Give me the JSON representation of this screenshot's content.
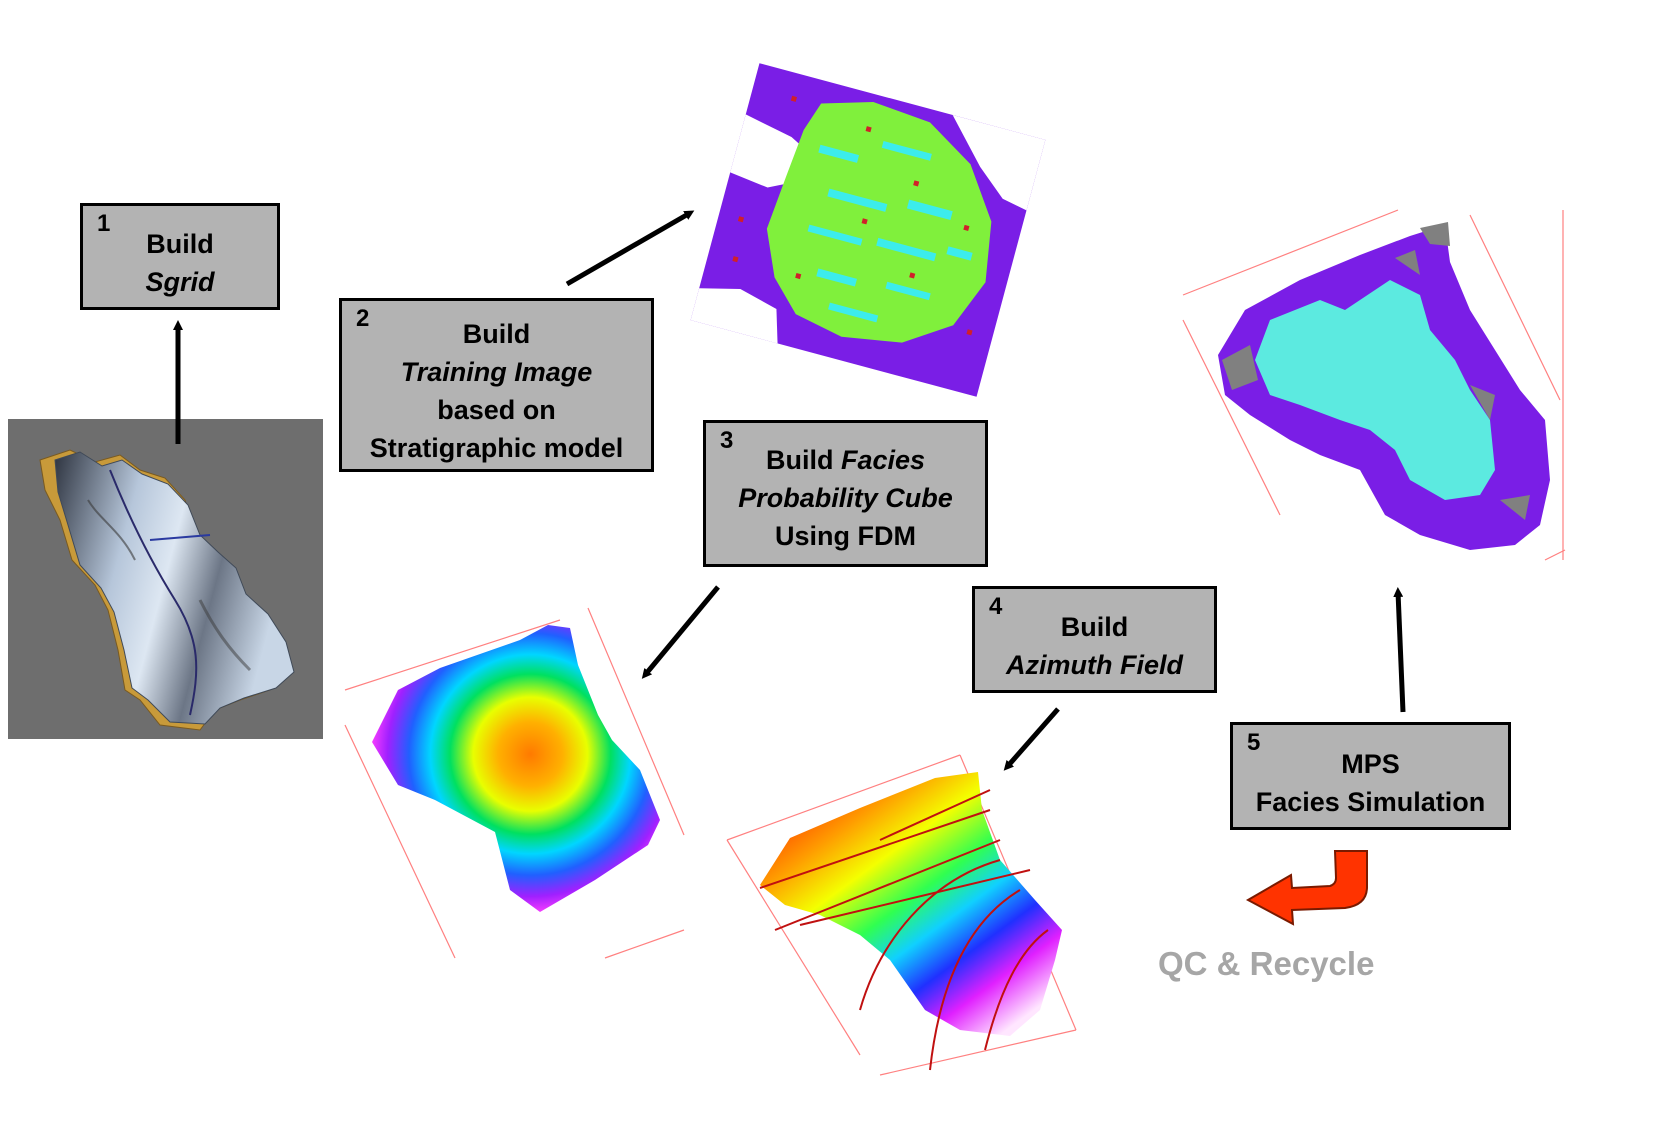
{
  "steps": [
    {
      "number": "1",
      "line1": "Build",
      "line2": "Sgrid"
    },
    {
      "number": "2",
      "line1": "Build",
      "line2": "Training Image",
      "line3": "based on",
      "line4": "Stratigraphic model"
    },
    {
      "number": "3",
      "line1a": "Build ",
      "line1b": "Facies",
      "line2": "Probability Cube",
      "line3": "Using FDM"
    },
    {
      "number": "4",
      "line1": "Build",
      "line2": "Azimuth Field"
    },
    {
      "number": "5",
      "line1": "MPS",
      "line2": "Facies Simulation"
    }
  ],
  "caption": "QC & Recycle",
  "colors": {
    "box_fill": "#b3b3b3",
    "grid_background": "#6e6e6e",
    "training_image_background": "#7a1ee6",
    "training_image_green": "#80f03c",
    "training_image_cyan": "#3cecec",
    "simulation_cyan": "#5ceae0",
    "recycle_arrow": "#ff3300",
    "caption": "#a6a6a6"
  },
  "icons": [
    "up-arrow-icon",
    "diagonal-arrow-icon",
    "curved-recycle-arrow-icon"
  ]
}
